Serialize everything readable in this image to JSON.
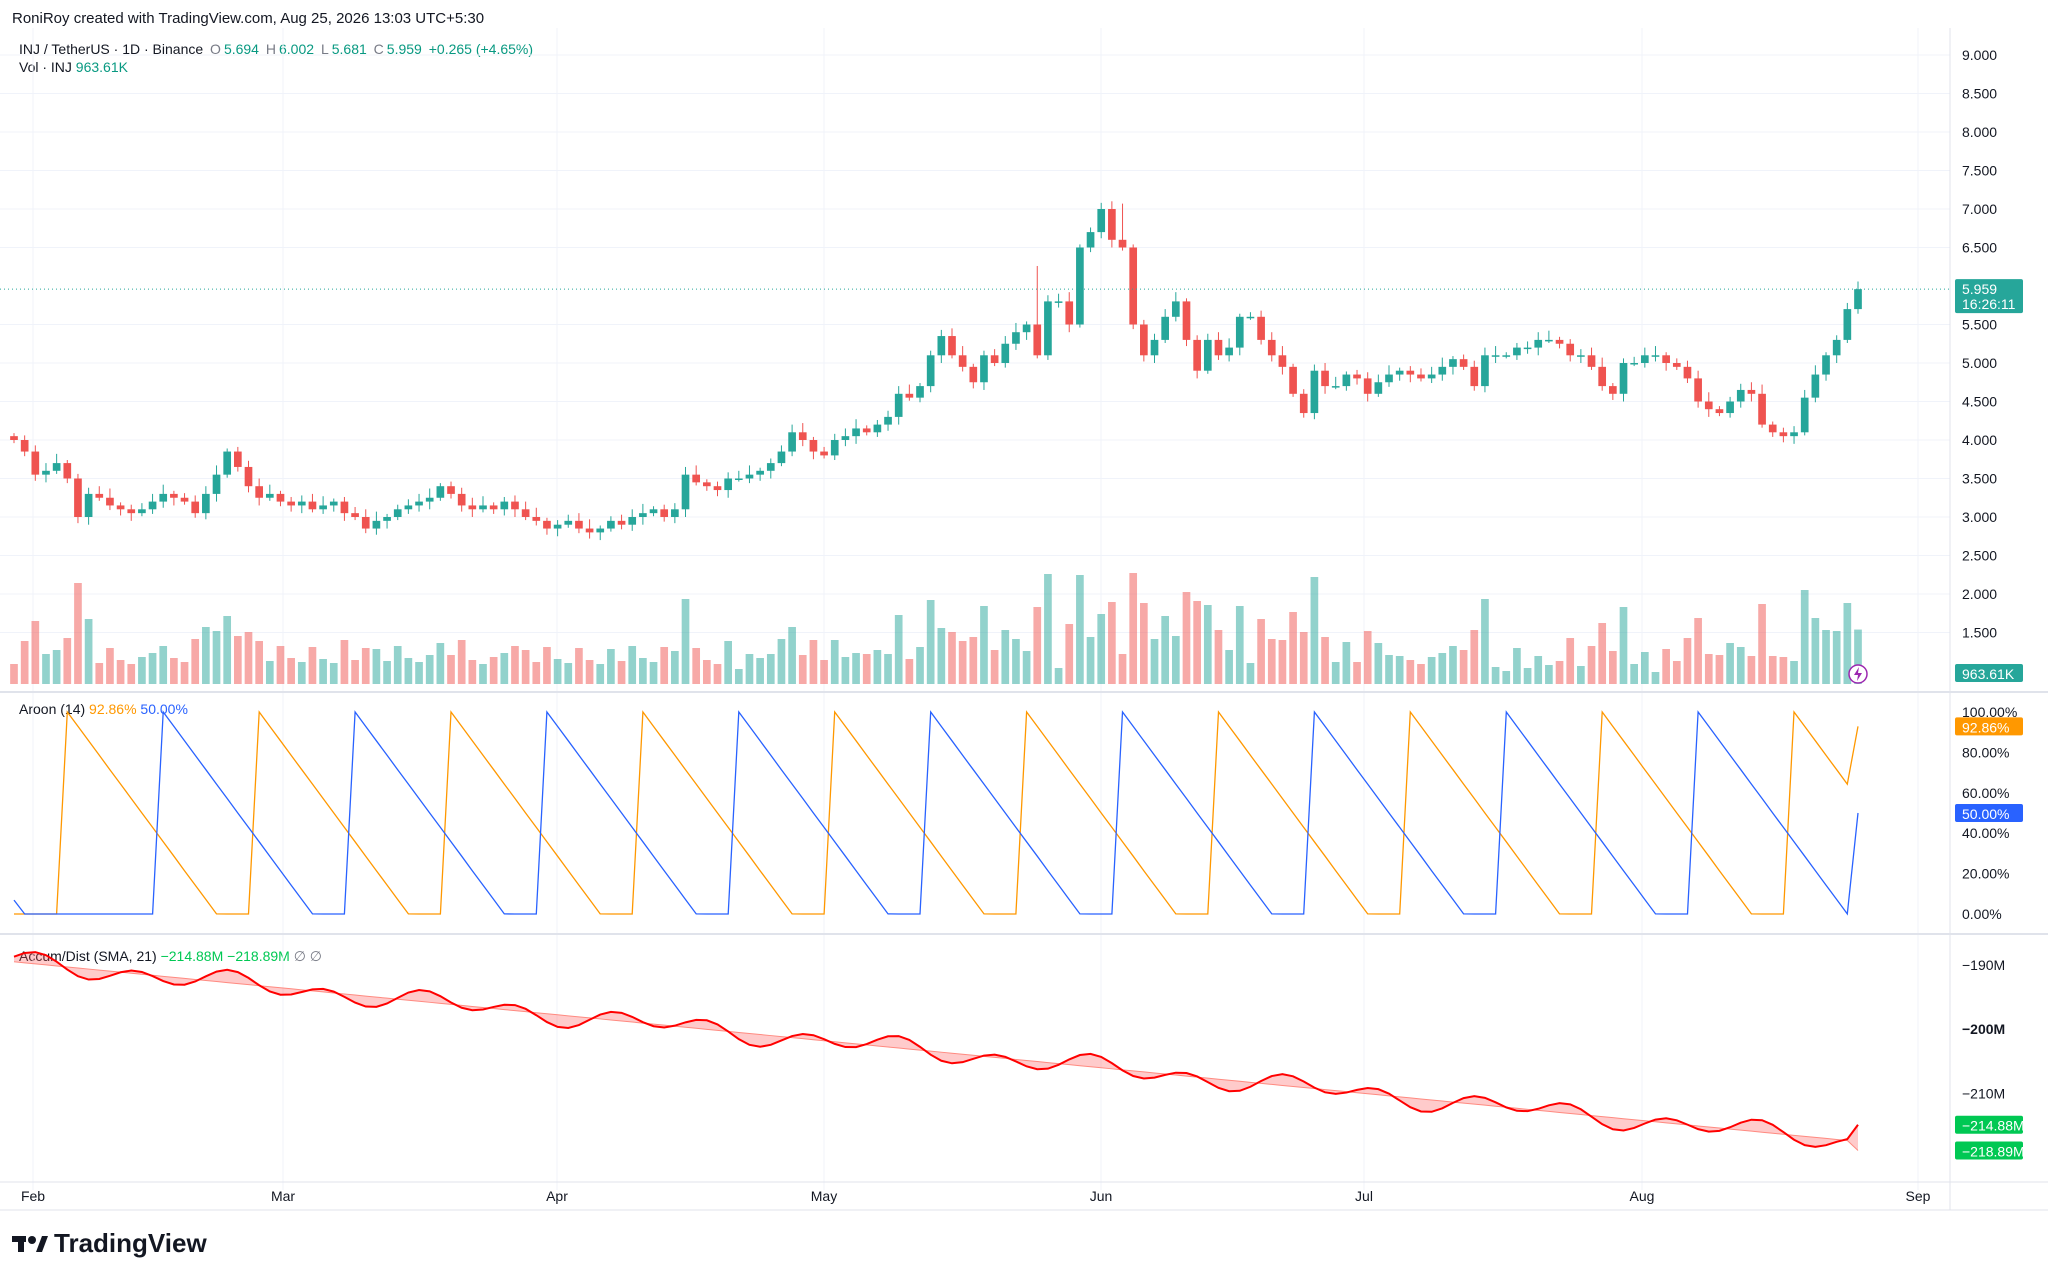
{
  "header": {
    "created_by": "RoniRoy created with TradingView.com, Aug 25, 2026 13:03 UTC+5:30"
  },
  "legend": {
    "symbol": "INJ / TetherUS · 1D · Binance",
    "o_label": "O",
    "o_value": "5.694",
    "h_label": "H",
    "h_value": "6.002",
    "l_label": "L",
    "l_value": "5.681",
    "c_label": "C",
    "c_value": "5.959",
    "change": "+0.265 (+4.65%)",
    "vol_label": "Vol · INJ",
    "vol_value": "963.61K"
  },
  "price_badge": {
    "value": "5.959",
    "countdown": "16:26:11"
  },
  "volume_badge": "963.61K",
  "aroon": {
    "label": "Aroon (14)",
    "up_value": "92.86%",
    "down_value": "50.00%"
  },
  "ad": {
    "label": "Accum/Dist (SMA, 21)",
    "value1": "−214.88M",
    "value2": "−218.89M",
    "extra": "∅ ∅"
  },
  "logo_text": "TradingView",
  "colors": {
    "up": "#26a69a",
    "down": "#ef5350",
    "aroon_up": "#ff9800",
    "aroon_down": "#2962ff",
    "ad_line": "#ff0000",
    "ad_green": "#00c853"
  },
  "chart_data": [
    {
      "type": "candlestick",
      "title": "INJ / TetherUS · 1D · Binance",
      "x_tick_labels": [
        "Feb",
        "Mar",
        "Apr",
        "May",
        "Jun",
        "Jul",
        "Aug",
        "Sep"
      ],
      "y_tick_labels": [
        "9.000",
        "8.500",
        "8.000",
        "7.500",
        "7.000",
        "6.500",
        "5.500",
        "5.000",
        "4.500",
        "4.000",
        "3.500",
        "3.000",
        "2.500",
        "2.000",
        "1.500"
      ],
      "ylim": [
        1.0,
        9.3
      ],
      "last_price": 5.959,
      "closes": [
        4.0,
        3.85,
        3.55,
        3.6,
        3.7,
        3.5,
        3.0,
        3.3,
        3.25,
        3.15,
        3.1,
        3.05,
        3.1,
        3.2,
        3.3,
        3.25,
        3.2,
        3.05,
        3.3,
        3.55,
        3.85,
        3.65,
        3.4,
        3.25,
        3.3,
        3.2,
        3.15,
        3.2,
        3.1,
        3.15,
        3.2,
        3.05,
        3.0,
        2.85,
        2.95,
        3.0,
        3.1,
        3.15,
        3.2,
        3.25,
        3.4,
        3.3,
        3.15,
        3.1,
        3.15,
        3.1,
        3.2,
        3.1,
        3.0,
        2.95,
        2.85,
        2.9,
        2.95,
        2.85,
        2.8,
        2.85,
        2.95,
        2.9,
        3.0,
        3.05,
        3.1,
        3.0,
        3.1,
        3.55,
        3.45,
        3.4,
        3.35,
        3.5,
        3.5,
        3.55,
        3.6,
        3.7,
        3.85,
        4.1,
        4.0,
        3.85,
        3.8,
        4.0,
        4.05,
        4.15,
        4.1,
        4.2,
        4.3,
        4.6,
        4.55,
        4.7,
        5.1,
        5.35,
        5.1,
        4.95,
        4.75,
        5.1,
        5.0,
        5.25,
        5.4,
        5.5,
        5.1,
        5.8,
        5.8,
        5.5,
        6.5,
        6.7,
        7.0,
        6.6,
        6.5,
        5.5,
        5.1,
        5.3,
        5.6,
        5.8,
        5.3,
        4.9,
        5.3,
        5.1,
        5.2,
        5.6,
        5.6,
        5.3,
        5.1,
        4.95,
        4.6,
        4.35,
        4.9,
        4.7,
        4.7,
        4.85,
        4.8,
        4.6,
        4.75,
        4.85,
        4.9,
        4.85,
        4.8,
        4.85,
        4.95,
        5.05,
        4.95,
        4.7,
        5.1,
        5.1,
        5.1,
        5.2,
        5.2,
        5.3,
        5.3,
        5.25,
        5.1,
        5.1,
        4.95,
        4.7,
        4.6,
        5.0,
        5.0,
        5.1,
        5.1,
        5.0,
        4.95,
        4.8,
        4.5,
        4.4,
        4.35,
        4.5,
        4.65,
        4.6,
        4.2,
        4.1,
        4.05,
        4.1,
        4.55,
        4.85,
        5.1,
        5.3,
        5.7,
        5.959
      ]
    },
    {
      "type": "bar",
      "title": "Vol · INJ",
      "last_value": 963610
    },
    {
      "type": "line",
      "title": "Aroon (14)",
      "y_tick_labels": [
        "100.00%",
        "80.00%",
        "60.00%",
        "40.00%",
        "20.00%",
        "0.00%"
      ],
      "ylim": [
        0,
        100
      ],
      "series": [
        {
          "name": "Aroon Up",
          "last_value": 92.86
        },
        {
          "name": "Aroon Down",
          "last_value": 50.0
        }
      ]
    },
    {
      "type": "line",
      "title": "Accum/Dist (SMA, 21)",
      "y_tick_labels": [
        "−190M",
        "−200M",
        "−210M"
      ],
      "series": [
        {
          "name": "Accum/Dist",
          "last_value": -214.88
        },
        {
          "name": "SMA 21",
          "last_value": -218.89
        }
      ]
    }
  ]
}
